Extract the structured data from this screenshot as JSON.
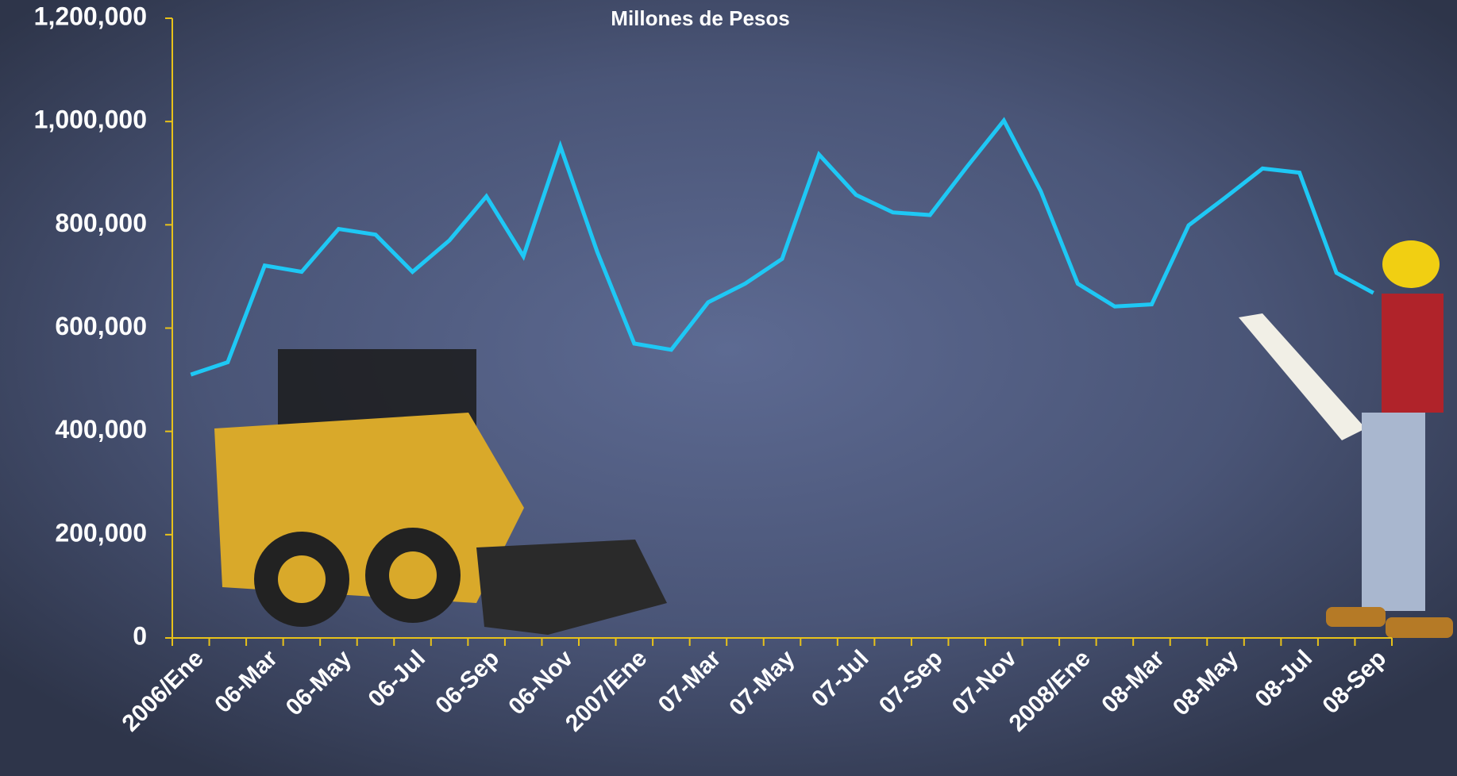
{
  "chart_data": {
    "type": "line",
    "title": "Millones de Pesos",
    "categories": [
      "2006/Ene",
      null,
      "06-Mar",
      null,
      "06-May",
      null,
      "06-Jul",
      null,
      "06-Sep",
      null,
      "06-Nov",
      null,
      "2007/Ene",
      null,
      "07-Mar",
      null,
      "07-May",
      null,
      "07-Jul",
      null,
      "07-Sep",
      null,
      "07-Nov",
      null,
      "2008/Ene",
      null,
      "08-Mar",
      null,
      "08-May",
      null,
      "08-Jul",
      null,
      "08-Sep"
    ],
    "series": [
      {
        "color": "#1ec8f5",
        "values": [
          510000,
          534000,
          721000,
          709000,
          792000,
          781000,
          709000,
          770000,
          855000,
          739000,
          952000,
          747000,
          570000,
          558000,
          650000,
          686000,
          734000,
          936000,
          858000,
          824000,
          819000,
          912000,
          1002000,
          865000,
          686000,
          642000,
          646000,
          799000,
          853000,
          909000,
          901000,
          707000,
          668000
        ]
      }
    ],
    "ylim": [
      0,
      1200000
    ],
    "yticks": [
      0,
      {
        "value": 200000,
        "label": "200,000"
      },
      {
        "value": 400000,
        "label": "400,000"
      },
      {
        "value": 600000,
        "label": "600,000"
      },
      {
        "value": 800000,
        "label": "800,000"
      },
      {
        "value": 1000000,
        "label": "1,000,000"
      },
      {
        "value": 1200000,
        "label": "1,200,000"
      }
    ],
    "axis_color": "#e8c21a"
  }
}
